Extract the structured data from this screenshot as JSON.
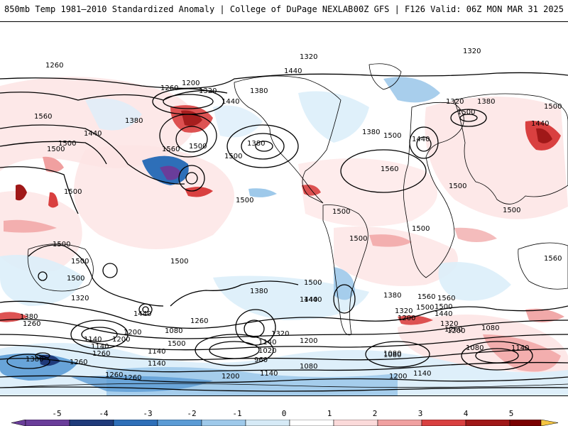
{
  "header": {
    "left_title": "850mb Temp 1981–2010 Standardized Anomaly | College of DuPage NEXLAB",
    "right_title": "00Z GFS | F126 Valid: 06Z MON MAR 31 2025"
  },
  "colorbar": {
    "ticks": [
      "-5",
      "-4",
      "-3",
      "-2",
      "-1",
      "0",
      "1",
      "2",
      "3",
      "4",
      "5"
    ],
    "colors": [
      "#6a3d9a",
      "#1f3a7a",
      "#2e6fb8",
      "#5b9bd5",
      "#9ec9ea",
      "#d6eaf6",
      "#ffffff",
      "#fbdada",
      "#f0a0a0",
      "#d94040",
      "#a01818",
      "#7a0000",
      "#f5c542"
    ]
  },
  "contour_labels": [
    {
      "id": "l1",
      "text": "1320"
    },
    {
      "id": "l2",
      "text": "1320"
    },
    {
      "id": "l3",
      "text": "1260"
    },
    {
      "id": "l4",
      "text": "1200"
    },
    {
      "id": "l5",
      "text": "1260"
    },
    {
      "id": "l6",
      "text": "1320"
    },
    {
      "id": "l7",
      "text": "1440"
    },
    {
      "id": "l8",
      "text": "1380"
    },
    {
      "id": "l9",
      "text": "1440"
    },
    {
      "id": "l10",
      "text": "1560"
    },
    {
      "id": "l11",
      "text": "1380"
    },
    {
      "id": "l12",
      "text": "1440"
    },
    {
      "id": "l13",
      "text": "1500"
    },
    {
      "id": "l14",
      "text": "1560"
    },
    {
      "id": "l15",
      "text": "1500"
    },
    {
      "id": "l16",
      "text": "1380"
    },
    {
      "id": "l17",
      "text": "1500"
    },
    {
      "id": "l18",
      "text": "1380"
    },
    {
      "id": "l19",
      "text": "1500"
    },
    {
      "id": "l20",
      "text": "1440"
    },
    {
      "id": "l21",
      "text": "1320"
    },
    {
      "id": "l22",
      "text": "1380"
    },
    {
      "id": "l23",
      "text": "1500"
    },
    {
      "id": "l24",
      "text": "1500"
    },
    {
      "id": "l25",
      "text": "1440"
    },
    {
      "id": "l26",
      "text": "1500"
    },
    {
      "id": "l27",
      "text": "1560"
    },
    {
      "id": "l28",
      "text": "1500"
    },
    {
      "id": "l29",
      "text": "1500"
    },
    {
      "id": "l30",
      "text": "1500"
    },
    {
      "id": "l31",
      "text": "1500"
    },
    {
      "id": "l32",
      "text": "1500"
    },
    {
      "id": "l33",
      "text": "1500"
    },
    {
      "id": "l34",
      "text": "1500"
    },
    {
      "id": "l35",
      "text": "1500"
    },
    {
      "id": "l36",
      "text": "1500"
    },
    {
      "id": "l37",
      "text": "1500"
    },
    {
      "id": "l38",
      "text": "1560"
    },
    {
      "id": "l39",
      "text": "1500"
    },
    {
      "id": "l40",
      "text": "1380"
    },
    {
      "id": "l41",
      "text": "1440"
    },
    {
      "id": "l42",
      "text": "1500"
    },
    {
      "id": "l43",
      "text": "1380"
    },
    {
      "id": "l44",
      "text": "1560"
    },
    {
      "id": "l45",
      "text": "1320"
    },
    {
      "id": "l46",
      "text": "1380"
    },
    {
      "id": "l47",
      "text": "1260"
    },
    {
      "id": "l48",
      "text": "1440"
    },
    {
      "id": "l49",
      "text": "1260"
    },
    {
      "id": "l50",
      "text": "1200"
    },
    {
      "id": "l51",
      "text": "1080"
    },
    {
      "id": "l52",
      "text": "1140"
    },
    {
      "id": "l53",
      "text": "1200"
    },
    {
      "id": "l54",
      "text": "1260"
    },
    {
      "id": "l55",
      "text": "1140"
    },
    {
      "id": "l56",
      "text": "1320"
    },
    {
      "id": "l57",
      "text": "1140"
    },
    {
      "id": "l58",
      "text": "1200"
    },
    {
      "id": "l59",
      "text": "1020"
    },
    {
      "id": "l60",
      "text": "960"
    },
    {
      "id": "l61",
      "text": "1080"
    },
    {
      "id": "l62",
      "text": "1140"
    },
    {
      "id": "l63",
      "text": "1200"
    },
    {
      "id": "l64",
      "text": "1080"
    },
    {
      "id": "l65",
      "text": "1140"
    },
    {
      "id": "l66",
      "text": "1200"
    },
    {
      "id": "l67",
      "text": "1260"
    },
    {
      "id": "l68",
      "text": "1140"
    },
    {
      "id": "l69",
      "text": "1080"
    },
    {
      "id": "l70",
      "text": "1080"
    },
    {
      "id": "l71",
      "text": "1140"
    },
    {
      "id": "l72",
      "text": "1200"
    },
    {
      "id": "l73",
      "text": "1320"
    },
    {
      "id": "l74",
      "text": "1380"
    },
    {
      "id": "l75",
      "text": "1260"
    },
    {
      "id": "l76",
      "text": "1320"
    },
    {
      "id": "l77",
      "text": "1260"
    },
    {
      "id": "l78",
      "text": "1440"
    },
    {
      "id": "l79",
      "text": "1500"
    },
    {
      "id": "l80",
      "text": "1500"
    },
    {
      "id": "l81",
      "text": "1560"
    },
    {
      "id": "l82",
      "text": "1440"
    },
    {
      "id": "l83",
      "text": "1500"
    },
    {
      "id": "l84",
      "text": "1140"
    },
    {
      "id": "l85",
      "text": "1200"
    },
    {
      "id": "l86",
      "text": "1260"
    },
    {
      "id": "l87",
      "text": "1080"
    }
  ]
}
